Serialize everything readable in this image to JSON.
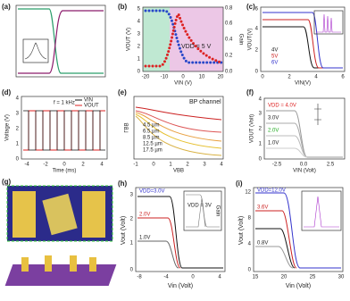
{
  "a": {
    "label": "(a)"
  },
  "b": {
    "label": "(b)",
    "y_label": "VOUT (V)",
    "y2_label": "Gain",
    "x_label": "VIN (V)",
    "annotation": "VDD = 5 V",
    "yticks": [
      "0",
      "1",
      "2",
      "3",
      "4",
      "5"
    ],
    "y2ticks": [
      "0.0",
      "0.2",
      "0.4",
      "0.6",
      "0.8"
    ],
    "xticks": [
      "-20",
      "-10",
      "0",
      "10",
      "20"
    ]
  },
  "c": {
    "label": "(c)",
    "y_label": "VOUT(V)",
    "x_label": "VIN(V)",
    "legend": [
      "4V",
      "5V",
      "6V"
    ],
    "yticks": [
      "0",
      "2",
      "4",
      "6"
    ],
    "xticks": [
      "0",
      "2",
      "4",
      "6"
    ]
  },
  "d": {
    "label": "(d)",
    "annotation": "f = 1 kHz",
    "legend": [
      "VIN",
      "VOUT"
    ],
    "y_label": "Voltage (V)",
    "x_label": "Time (ms)",
    "yticks": [
      "0",
      "1",
      "2",
      "3",
      "4"
    ],
    "xticks": [
      "-4",
      "-2",
      "0",
      "2",
      "4"
    ]
  },
  "e": {
    "label": "(e)",
    "annotation": "BP channel",
    "legend": [
      "4.5 µm",
      "6.5 µm",
      "8.5 µm",
      "12.5 µm",
      "17.5 µm"
    ],
    "y_label": "ΓBB",
    "x_label": "VBB",
    "xticks": [
      "-1",
      "0",
      "1",
      "2",
      "3",
      "4"
    ]
  },
  "f": {
    "label": "(f)",
    "annotations": [
      "VDD = 4.0V",
      "3.0V",
      "2.0V",
      "1.0V"
    ],
    "y_label": "VOUT (Volt)",
    "x_label": "VIN (Volt)",
    "yticks": [
      "0",
      "1",
      "2",
      "3",
      "4"
    ],
    "xticks": [
      "-2.5",
      "0.0",
      "2.5"
    ]
  },
  "g": {
    "label": "(g)"
  },
  "h": {
    "label": "(h)",
    "annotations": [
      "VDD=3.0V",
      "2.0V",
      "1.0V"
    ],
    "inset": "VDD = 3V",
    "y_label": "Vout (Volt)",
    "y2_label": "Gain",
    "x_label": "Vin (Volt)",
    "yticks": [
      "0",
      "1",
      "2",
      "3"
    ],
    "xticks": [
      "-8",
      "-4",
      "0",
      "4"
    ]
  },
  "i": {
    "label": "(i)",
    "annotations": [
      "VDD=12.0V",
      "3.6V",
      "0.8V"
    ],
    "y_label": "Vout (Volt)",
    "x_label": "Vin (Volt)",
    "yticks": [
      "0",
      "4",
      "8",
      "12"
    ],
    "xticks": [
      "15",
      "20",
      "25",
      "30"
    ]
  }
}
